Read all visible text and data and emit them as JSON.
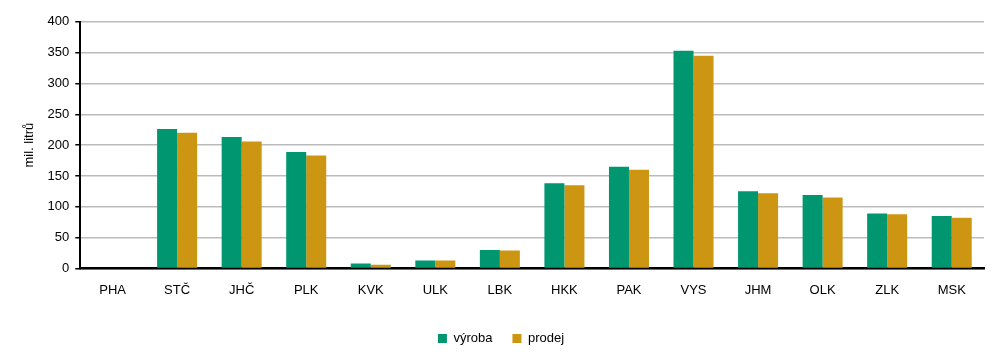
{
  "chart_data": {
    "type": "bar",
    "ylabel": "mil. litrů",
    "categories": [
      "PHA",
      "STČ",
      "JHČ",
      "PLK",
      "KVK",
      "ULK",
      "LBK",
      "HKK",
      "PAK",
      "VYS",
      "JHM",
      "OLK",
      "ZLK",
      "MSK"
    ],
    "series": [
      {
        "name": "výroba",
        "color": "#009670",
        "values": [
          0,
          226,
          213,
          189,
          8,
          13,
          30,
          138,
          165,
          353,
          125,
          119,
          89,
          85
        ]
      },
      {
        "name": "prodej",
        "color": "#cc9612",
        "values": [
          0,
          220,
          206,
          183,
          6,
          13,
          29,
          135,
          160,
          345,
          122,
          115,
          88,
          82
        ]
      }
    ],
    "ylim": [
      0,
      400
    ],
    "yticks": [
      0,
      50,
      100,
      150,
      200,
      250,
      300,
      350,
      400
    ],
    "grid": "y",
    "legend": "bottom"
  }
}
